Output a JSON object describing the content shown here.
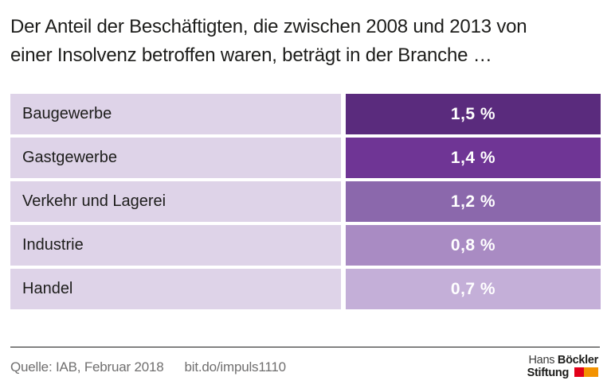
{
  "title": {
    "line1": "Der Anteil der Beschäftigten, die zwischen 2008 und 2013 von",
    "line2": "einer Insolvenz betroffen waren, beträgt in der Branche …"
  },
  "chart_data": {
    "type": "table",
    "title": "Der Anteil der Beschäftigten, die zwischen 2008 und 2013 von einer Insolvenz betroffen waren, beträgt in der Branche …",
    "categories": [
      "Baugewerbe",
      "Gastgewerbe",
      "Verkehr und Lagerei",
      "Industrie",
      "Handel"
    ],
    "values": [
      1.5,
      1.4,
      1.2,
      0.8,
      0.7
    ],
    "value_labels": [
      "1,5 %",
      "1,4 %",
      "1,2 %",
      "0,8 %",
      "0,7 %"
    ],
    "unit": "%",
    "layout": "two-column rows; equal-width value cells color-coded, darker purple = higher value; no axes or gridlines",
    "colors": {
      "row_label_bg": "#ded3e8",
      "bars": [
        "#5a2b7d",
        "#6f3595",
        "#8b68ac",
        "#a98bc3",
        "#c4afd8"
      ],
      "value_text": "#ffffff",
      "label_text": "#1d1d1b"
    }
  },
  "footer": {
    "source": "Quelle: IAB, Februar 2018",
    "link": "bit.do/impuls1110",
    "logo": {
      "name1_regular": "Hans",
      "name1_bold": " Böckler",
      "name2_bold": "Stiftung",
      "block_red": "#e2001a",
      "block_orange": "#f39200"
    }
  }
}
